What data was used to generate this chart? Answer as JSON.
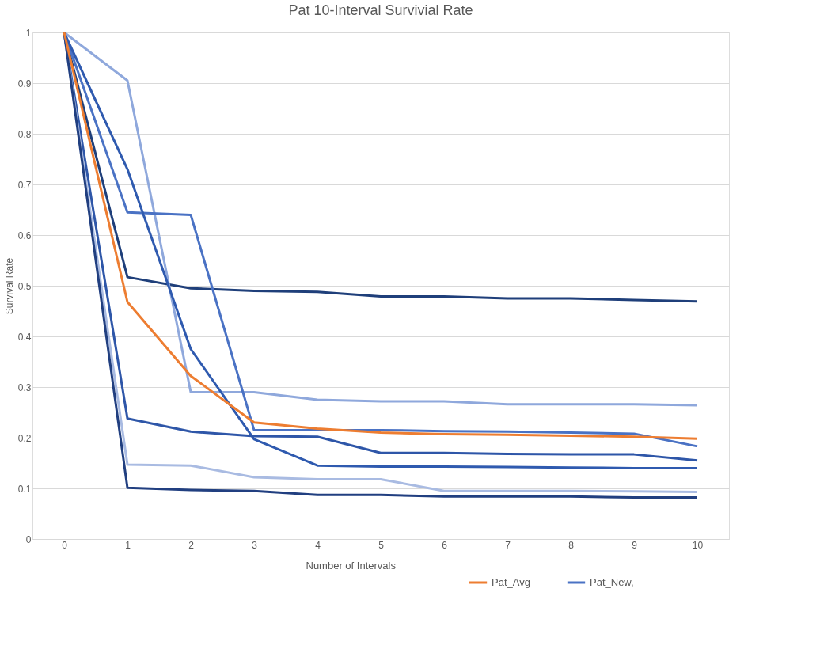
{
  "chart_data": {
    "type": "line",
    "title": "Pat 10-Interval Survivial Rate",
    "xlabel": "Number of Intervals",
    "ylabel": "Survival Rate",
    "categories": [
      "0",
      "1",
      "2",
      "3",
      "4",
      "5",
      "6",
      "7",
      "8",
      "9",
      "10"
    ],
    "ylim": [
      0,
      1
    ],
    "yticks": [
      0,
      0.1,
      0.2,
      0.3,
      0.4,
      0.5,
      0.6,
      0.7,
      0.8,
      0.9,
      1
    ],
    "grid": "y",
    "legend": "bottom right",
    "marker": "none",
    "line_style": "solid",
    "series": [
      {
        "color": "#1f3f7a",
        "values": [
          1,
          0.517,
          0.495,
          0.49,
          0.488,
          0.479,
          0.479,
          0.475,
          0.475,
          0.472,
          0.469
        ]
      },
      {
        "color": "#8fa8dc",
        "values": [
          1,
          0.905,
          0.29,
          0.29,
          0.275,
          0.272,
          0.272,
          0.266,
          0.266,
          0.266,
          0.264
        ]
      },
      {
        "name": "Pat_New,",
        "color": "#4a72c4",
        "values": [
          1,
          0.645,
          0.64,
          0.215,
          0.215,
          0.215,
          0.213,
          0.212,
          0.21,
          0.208,
          0.183
        ]
      },
      {
        "color": "#2f5aaf",
        "values": [
          1,
          0.73,
          0.375,
          0.197,
          0.145,
          0.143,
          0.143,
          0.142,
          0.141,
          0.14,
          0.14
        ]
      },
      {
        "color": "#2e56a8",
        "values": [
          1,
          0.238,
          0.212,
          0.203,
          0.202,
          0.17,
          0.17,
          0.168,
          0.167,
          0.167,
          0.155
        ]
      },
      {
        "color": "#a9bbe2",
        "values": [
          1,
          0.147,
          0.145,
          0.122,
          0.118,
          0.118,
          0.095,
          0.095,
          0.095,
          0.094,
          0.093
        ]
      },
      {
        "color": "#213f80",
        "values": [
          1,
          0.101,
          0.097,
          0.095,
          0.087,
          0.087,
          0.084,
          0.084,
          0.084,
          0.082,
          0.082
        ]
      },
      {
        "name": "Pat_Avg",
        "color": "#ed7d31",
        "values": [
          1,
          0.468,
          0.322,
          0.23,
          0.218,
          0.21,
          0.207,
          0.206,
          0.204,
          0.202,
          0.198
        ]
      }
    ]
  }
}
